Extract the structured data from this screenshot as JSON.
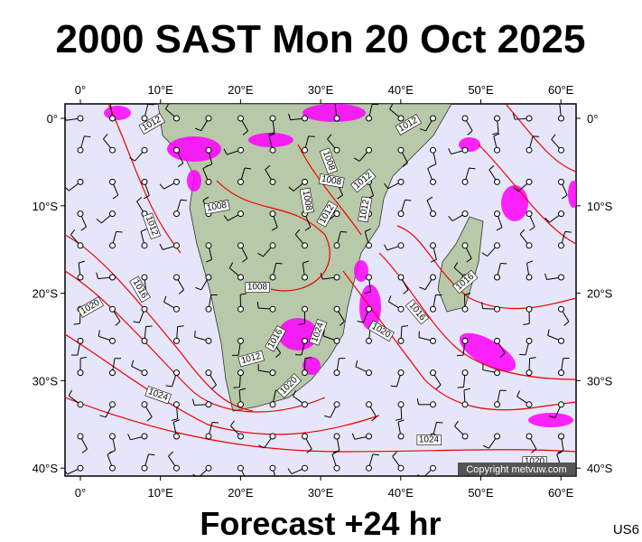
{
  "title": "2000 SAST Mon 20 Oct 2025",
  "axes": {
    "lon_labels": [
      "0°",
      "10°E",
      "20°E",
      "30°E",
      "40°E",
      "50°E",
      "60°E"
    ],
    "lat_labels": [
      "0°",
      "10°S",
      "20°S",
      "30°S",
      "40°S"
    ]
  },
  "isobar_labels": [
    "1012",
    "1012",
    "1008",
    "1008",
    "1012",
    "1008",
    "1008",
    "1012",
    "1012",
    "1012",
    "1016",
    "1020",
    "1008",
    "1016",
    "1016",
    "1016",
    "1024",
    "1020",
    "1012",
    "1020",
    "1024",
    "1024",
    "1020"
  ],
  "copyright": "Copyright metvuw.com",
  "footer": "Forecast +24 hr",
  "code": "US6"
}
